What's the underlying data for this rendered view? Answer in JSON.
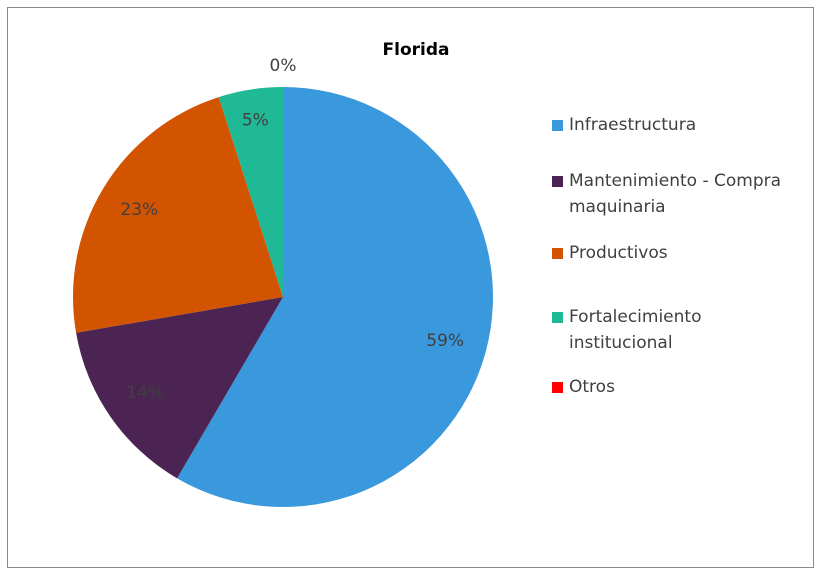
{
  "chart_data": {
    "type": "pie",
    "title": "Florida",
    "categories": [
      "Infraestructura",
      "Mantenimiento - Compra maquinaria",
      "Productivos",
      "Fortalecimiento institucional",
      "Otros"
    ],
    "values": [
      59,
      14,
      23,
      5,
      0
    ],
    "value_labels": [
      "59%",
      "14%",
      "23%",
      "5%",
      "0%"
    ],
    "colors": [
      "#3a98dc",
      "#4b2453",
      "#d35400",
      "#1fb996",
      "#ff0000"
    ]
  }
}
